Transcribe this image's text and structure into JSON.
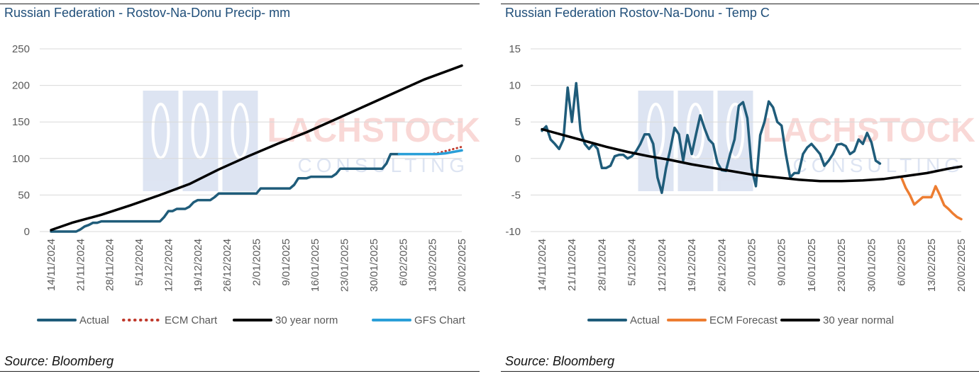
{
  "source_label": "Source: Bloomberg",
  "watermark": {
    "line1": "LACHSTOCK",
    "line2": "CONSULTING"
  },
  "chart_data": [
    {
      "type": "line",
      "title": "Russian Federation - Rostov-Na-Donu Precip- mm",
      "xlabel": "",
      "ylabel": "",
      "ylim": [
        0,
        250
      ],
      "yticks": [
        0,
        50,
        100,
        150,
        200,
        250
      ],
      "x_start": "2024-11-14",
      "x_end": "2025-02-20",
      "x_tick_labels": [
        "14/11/2024",
        "21/11/2024",
        "28/11/2024",
        "5/12/2024",
        "12/12/2024",
        "19/12/2024",
        "26/12/2024",
        "2/01/2025",
        "9/01/2025",
        "16/01/2025",
        "23/01/2025",
        "30/01/2025",
        "6/02/2025",
        "13/02/2025",
        "20/02/2025"
      ],
      "grid": true,
      "legend_position": "bottom",
      "series": [
        {
          "name": "Actual",
          "color": "#1f5c7a",
          "style": "solid",
          "points": [
            [
              "2024-11-14",
              0
            ],
            [
              "2024-11-20",
              0
            ],
            [
              "2024-11-21",
              3
            ],
            [
              "2024-11-22",
              7
            ],
            [
              "2024-11-23",
              9
            ],
            [
              "2024-11-24",
              12
            ],
            [
              "2024-11-25",
              12
            ],
            [
              "2024-11-26",
              14
            ],
            [
              "2024-12-10",
              14
            ],
            [
              "2024-12-11",
              20
            ],
            [
              "2024-12-12",
              28
            ],
            [
              "2024-12-13",
              28
            ],
            [
              "2024-12-14",
              31
            ],
            [
              "2024-12-16",
              31
            ],
            [
              "2024-12-17",
              34
            ],
            [
              "2024-12-18",
              40
            ],
            [
              "2024-12-19",
              43
            ],
            [
              "2024-12-22",
              43
            ],
            [
              "2024-12-23",
              47
            ],
            [
              "2024-12-24",
              52
            ],
            [
              "2025-01-02",
              52
            ],
            [
              "2025-01-03",
              59
            ],
            [
              "2025-01-10",
              59
            ],
            [
              "2025-01-11",
              64
            ],
            [
              "2025-01-12",
              73
            ],
            [
              "2025-01-14",
              73
            ],
            [
              "2025-01-15",
              75
            ],
            [
              "2025-01-20",
              75
            ],
            [
              "2025-01-21",
              79
            ],
            [
              "2025-01-22",
              86
            ],
            [
              "2025-02-01",
              86
            ],
            [
              "2025-02-02",
              93
            ],
            [
              "2025-02-03",
              106
            ],
            [
              "2025-02-05",
              106
            ]
          ]
        },
        {
          "name": "ECM Chart",
          "color": "#c0392b",
          "style": "dotted",
          "points": [
            [
              "2025-02-05",
              106
            ],
            [
              "2025-02-12",
              106
            ],
            [
              "2025-02-14",
              107
            ],
            [
              "2025-02-16",
              110
            ],
            [
              "2025-02-18",
              113
            ],
            [
              "2025-02-20",
              116
            ]
          ]
        },
        {
          "name": "30 year norm",
          "color": "#000000",
          "style": "solid",
          "points": [
            [
              "2024-11-14",
              2
            ],
            [
              "2024-11-19",
              12
            ],
            [
              "2024-11-26",
              23
            ],
            [
              "2024-12-03",
              36
            ],
            [
              "2024-12-10",
              50
            ],
            [
              "2024-12-17",
              65
            ],
            [
              "2024-12-24",
              85
            ],
            [
              "2024-12-31",
              103
            ],
            [
              "2025-01-07",
              120
            ],
            [
              "2025-01-14",
              136
            ],
            [
              "2025-01-21",
              154
            ],
            [
              "2025-01-28",
              172
            ],
            [
              "2025-02-04",
              190
            ],
            [
              "2025-02-11",
              208
            ],
            [
              "2025-02-20",
              227
            ]
          ]
        },
        {
          "name": "GFS Chart",
          "color": "#2a9fd8",
          "style": "solid",
          "points": [
            [
              "2025-02-05",
              106
            ],
            [
              "2025-02-14",
              106
            ],
            [
              "2025-02-16",
              107
            ],
            [
              "2025-02-18",
              109
            ],
            [
              "2025-02-20",
              111
            ]
          ]
        }
      ]
    },
    {
      "type": "line",
      "title": "Russian Federation Rostov-Na-Donu - Temp C",
      "xlabel": "",
      "ylabel": "",
      "ylim": [
        -10,
        15
      ],
      "yticks": [
        -10,
        -5,
        0,
        5,
        10,
        15
      ],
      "x_start": "2024-11-14",
      "x_end": "2025-02-20",
      "x_tick_labels": [
        "14/11/2024",
        "21/11/2024",
        "28/11/2024",
        "5/12/2024",
        "12/12/2024",
        "19/12/2024",
        "26/12/2024",
        "2/01/2025",
        "9/01/2025",
        "16/01/2025",
        "23/01/2025",
        "30/01/2025",
        "6/02/2025",
        "13/02/2025",
        "20/02/2025"
      ],
      "grid": true,
      "legend_position": "bottom",
      "series": [
        {
          "name": "Actual",
          "color": "#1f5c7a",
          "style": "solid",
          "points": [
            [
              "2024-11-14",
              3.8
            ],
            [
              "2024-11-15",
              4.4
            ],
            [
              "2024-11-16",
              2.6
            ],
            [
              "2024-11-17",
              2
            ],
            [
              "2024-11-18",
              1.3
            ],
            [
              "2024-11-19",
              2.6
            ],
            [
              "2024-11-20",
              9.7
            ],
            [
              "2024-11-21",
              5
            ],
            [
              "2024-11-22",
              10.3
            ],
            [
              "2024-11-23",
              3.8
            ],
            [
              "2024-11-24",
              2
            ],
            [
              "2024-11-25",
              1.3
            ],
            [
              "2024-11-26",
              2
            ],
            [
              "2024-11-27",
              1.3
            ],
            [
              "2024-11-28",
              -1.3
            ],
            [
              "2024-11-29",
              -1.3
            ],
            [
              "2024-11-30",
              -1
            ],
            [
              "2024-12-01",
              0.3
            ],
            [
              "2024-12-02",
              0.5
            ],
            [
              "2024-12-03",
              0.5
            ],
            [
              "2024-12-04",
              0
            ],
            [
              "2024-12-05",
              0.3
            ],
            [
              "2024-12-06",
              1
            ],
            [
              "2024-12-07",
              2
            ],
            [
              "2024-12-08",
              3.3
            ],
            [
              "2024-12-09",
              3.3
            ],
            [
              "2024-12-10",
              2
            ],
            [
              "2024-12-11",
              -2.6
            ],
            [
              "2024-12-12",
              -4.7
            ],
            [
              "2024-12-13",
              -1.3
            ],
            [
              "2024-12-14",
              1.3
            ],
            [
              "2024-12-15",
              4.2
            ],
            [
              "2024-12-16",
              3.3
            ],
            [
              "2024-12-17",
              -0.3
            ],
            [
              "2024-12-18",
              3.2
            ],
            [
              "2024-12-19",
              0.6
            ],
            [
              "2024-12-20",
              3.3
            ],
            [
              "2024-12-21",
              5.9
            ],
            [
              "2024-12-22",
              4.1
            ],
            [
              "2024-12-23",
              2.6
            ],
            [
              "2024-12-24",
              2
            ],
            [
              "2024-12-25",
              -0.6
            ],
            [
              "2024-12-26",
              -1.6
            ],
            [
              "2024-12-27",
              -1.7
            ],
            [
              "2024-12-28",
              0.6
            ],
            [
              "2024-12-29",
              2.6
            ],
            [
              "2024-12-30",
              7.2
            ],
            [
              "2024-12-31",
              7.7
            ],
            [
              "2025-01-01",
              5.5
            ],
            [
              "2025-01-02",
              -1.3
            ],
            [
              "2025-01-03",
              -3.8
            ],
            [
              "2025-01-04",
              3.2
            ],
            [
              "2025-01-05",
              5
            ],
            [
              "2025-01-06",
              7.8
            ],
            [
              "2025-01-07",
              7
            ],
            [
              "2025-01-08",
              5
            ],
            [
              "2025-01-09",
              4.5
            ],
            [
              "2025-01-10",
              0.6
            ],
            [
              "2025-01-11",
              -2.6
            ],
            [
              "2025-01-12",
              -2
            ],
            [
              "2025-01-13",
              -2
            ],
            [
              "2025-01-14",
              0.6
            ],
            [
              "2025-01-15",
              1.5
            ],
            [
              "2025-01-16",
              2
            ],
            [
              "2025-01-17",
              1.3
            ],
            [
              "2025-01-18",
              0.6
            ],
            [
              "2025-01-19",
              -1
            ],
            [
              "2025-01-20",
              -0.3
            ],
            [
              "2025-01-21",
              0.6
            ],
            [
              "2025-01-22",
              1.9
            ],
            [
              "2025-01-23",
              2
            ],
            [
              "2025-01-24",
              1.7
            ],
            [
              "2025-01-25",
              0.6
            ],
            [
              "2025-01-26",
              1
            ],
            [
              "2025-01-27",
              2.6
            ],
            [
              "2025-01-28",
              2
            ],
            [
              "2025-01-29",
              3.5
            ],
            [
              "2025-01-30",
              2.2
            ],
            [
              "2025-01-31",
              -0.3
            ],
            [
              "2025-02-01",
              -0.7
            ]
          ]
        },
        {
          "name": "ECM Forecast",
          "color": "#ed7d31",
          "style": "solid",
          "points": [
            [
              "2025-02-06",
              -2.6
            ],
            [
              "2025-02-07",
              -4
            ],
            [
              "2025-02-08",
              -5
            ],
            [
              "2025-02-09",
              -6.3
            ],
            [
              "2025-02-10",
              -5.8
            ],
            [
              "2025-02-11",
              -5.3
            ],
            [
              "2025-02-12",
              -5.3
            ],
            [
              "2025-02-13",
              -5.3
            ],
            [
              "2025-02-14",
              -3.8
            ],
            [
              "2025-02-15",
              -5
            ],
            [
              "2025-02-16",
              -6.4
            ],
            [
              "2025-02-17",
              -6.9
            ],
            [
              "2025-02-18",
              -7.5
            ],
            [
              "2025-02-19",
              -8
            ],
            [
              "2025-02-20",
              -8.3
            ]
          ]
        },
        {
          "name": "30 year normal",
          "color": "#000000",
          "style": "solid",
          "points": [
            [
              "2024-11-14",
              4
            ],
            [
              "2024-11-19",
              3.2
            ],
            [
              "2024-11-24",
              2.4
            ],
            [
              "2024-11-29",
              1.6
            ],
            [
              "2024-12-04",
              0.9
            ],
            [
              "2024-12-09",
              0.3
            ],
            [
              "2024-12-14",
              -0.2
            ],
            [
              "2024-12-19",
              -0.8
            ],
            [
              "2024-12-24",
              -1.3
            ],
            [
              "2024-12-29",
              -1.8
            ],
            [
              "2025-01-03",
              -2.3
            ],
            [
              "2025-01-08",
              -2.6
            ],
            [
              "2025-01-13",
              -2.9
            ],
            [
              "2025-01-18",
              -3.1
            ],
            [
              "2025-01-23",
              -3.1
            ],
            [
              "2025-01-28",
              -3
            ],
            [
              "2025-02-02",
              -2.8
            ],
            [
              "2025-02-07",
              -2.4
            ],
            [
              "2025-02-12",
              -2
            ],
            [
              "2025-02-17",
              -1.4
            ],
            [
              "2025-02-20",
              -1.1
            ]
          ]
        }
      ]
    }
  ]
}
